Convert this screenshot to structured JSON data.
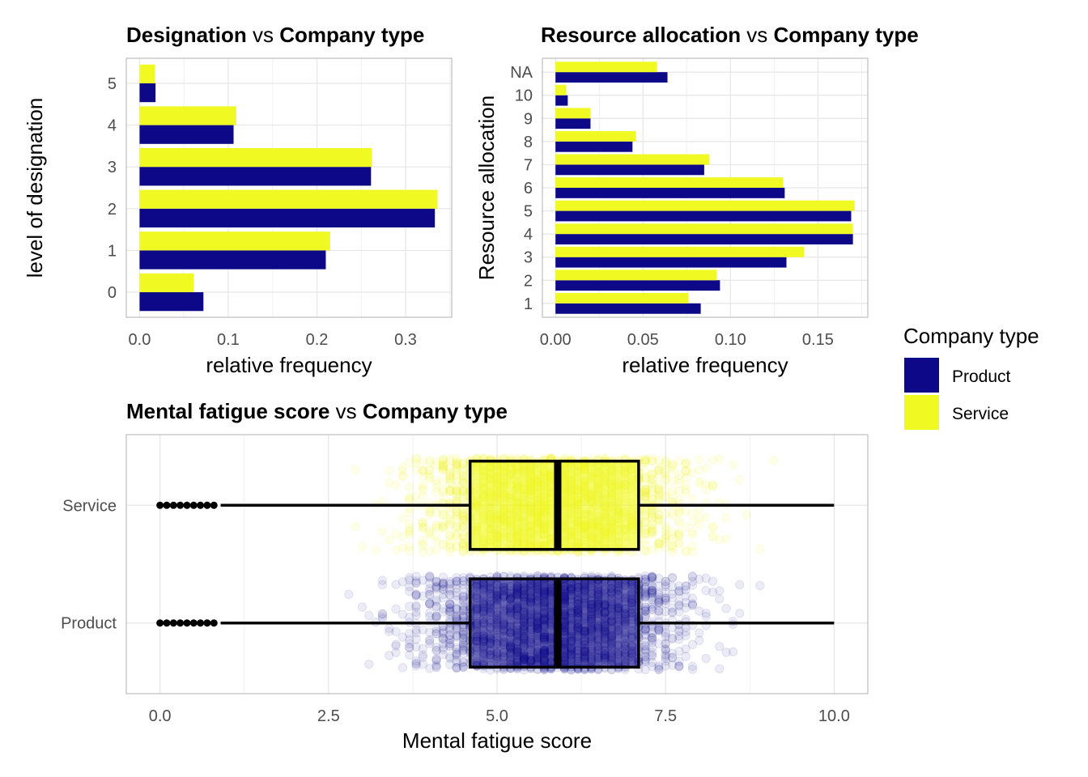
{
  "chart_data": [
    {
      "type": "bar",
      "orientation": "horizontal",
      "title_parts": [
        "Designation",
        " vs ",
        "Company type"
      ],
      "xlabel": "relative frequency",
      "ylabel": "level of designation",
      "xlim": [
        -0.015,
        0.352
      ],
      "xticks": [
        "0.0",
        "0.1",
        "0.2",
        "0.3"
      ],
      "xtick_values": [
        0,
        0.1,
        0.2,
        0.3
      ],
      "categories": [
        "0",
        "1",
        "2",
        "3",
        "4",
        "5"
      ],
      "series": [
        {
          "name": "Product",
          "values": [
            0.072,
            0.21,
            0.333,
            0.261,
            0.106,
            0.018
          ]
        },
        {
          "name": "Service",
          "values": [
            0.061,
            0.215,
            0.336,
            0.262,
            0.109,
            0.017
          ]
        }
      ],
      "grid": true
    },
    {
      "type": "bar",
      "orientation": "horizontal",
      "title_parts": [
        "Resource allocation",
        " vs ",
        "Company type"
      ],
      "xlabel": "relative frequency",
      "ylabel": "Resource allocation",
      "xlim": [
        -0.0075,
        0.1785
      ],
      "xticks": [
        "0.00",
        "0.05",
        "0.10",
        "0.15"
      ],
      "xtick_values": [
        0,
        0.05,
        0.1,
        0.15
      ],
      "categories": [
        "1",
        "2",
        "3",
        "4",
        "5",
        "6",
        "7",
        "8",
        "9",
        "10",
        "NA"
      ],
      "series": [
        {
          "name": "Product",
          "values": [
            0.083,
            0.094,
            0.132,
            0.17,
            0.169,
            0.131,
            0.085,
            0.044,
            0.02,
            0.007,
            0.064
          ]
        },
        {
          "name": "Service",
          "values": [
            0.076,
            0.092,
            0.142,
            0.17,
            0.171,
            0.13,
            0.088,
            0.046,
            0.02,
            0.006,
            0.058
          ]
        }
      ],
      "grid": true
    },
    {
      "type": "boxplot",
      "orientation": "horizontal",
      "title_parts": [
        "Mental fatigue score",
        " vs ",
        "Company type"
      ],
      "xlabel": "Mental fatigue score",
      "xlim": [
        -0.5,
        10.5
      ],
      "xticks": [
        "0.0",
        "2.5",
        "5.0",
        "7.5",
        "10.0"
      ],
      "xtick_values": [
        0,
        2.5,
        5,
        7.5,
        10
      ],
      "categories": [
        "Product",
        "Service"
      ],
      "boxes": [
        {
          "name": "Product",
          "q1": 4.6,
          "median": 5.9,
          "q3": 7.1,
          "whisker_low": 0.9,
          "whisker_high": 10.0,
          "outliers": [
            0.0,
            0.1,
            0.2,
            0.3,
            0.4,
            0.5,
            0.6,
            0.7,
            0.8
          ]
        },
        {
          "name": "Service",
          "q1": 4.6,
          "median": 5.9,
          "q3": 7.1,
          "whisker_low": 0.9,
          "whisker_high": 10.0,
          "outliers": [
            0.0,
            0.1,
            0.2,
            0.3,
            0.4,
            0.5,
            0.6,
            0.7,
            0.8
          ]
        }
      ],
      "jitter_points": true,
      "grid": true
    }
  ],
  "legend": {
    "title": "Company type",
    "items": [
      {
        "label": "Product",
        "color": "#0D0887"
      },
      {
        "label": "Service",
        "color": "#F0F921"
      }
    ],
    "placement": "right"
  },
  "colors": {
    "Product": "#0D0887",
    "Service": "#F0F921",
    "grid": "#e6e6e6",
    "panel_border": "#bdbdbd",
    "tick_text": "#4d4d4d"
  }
}
